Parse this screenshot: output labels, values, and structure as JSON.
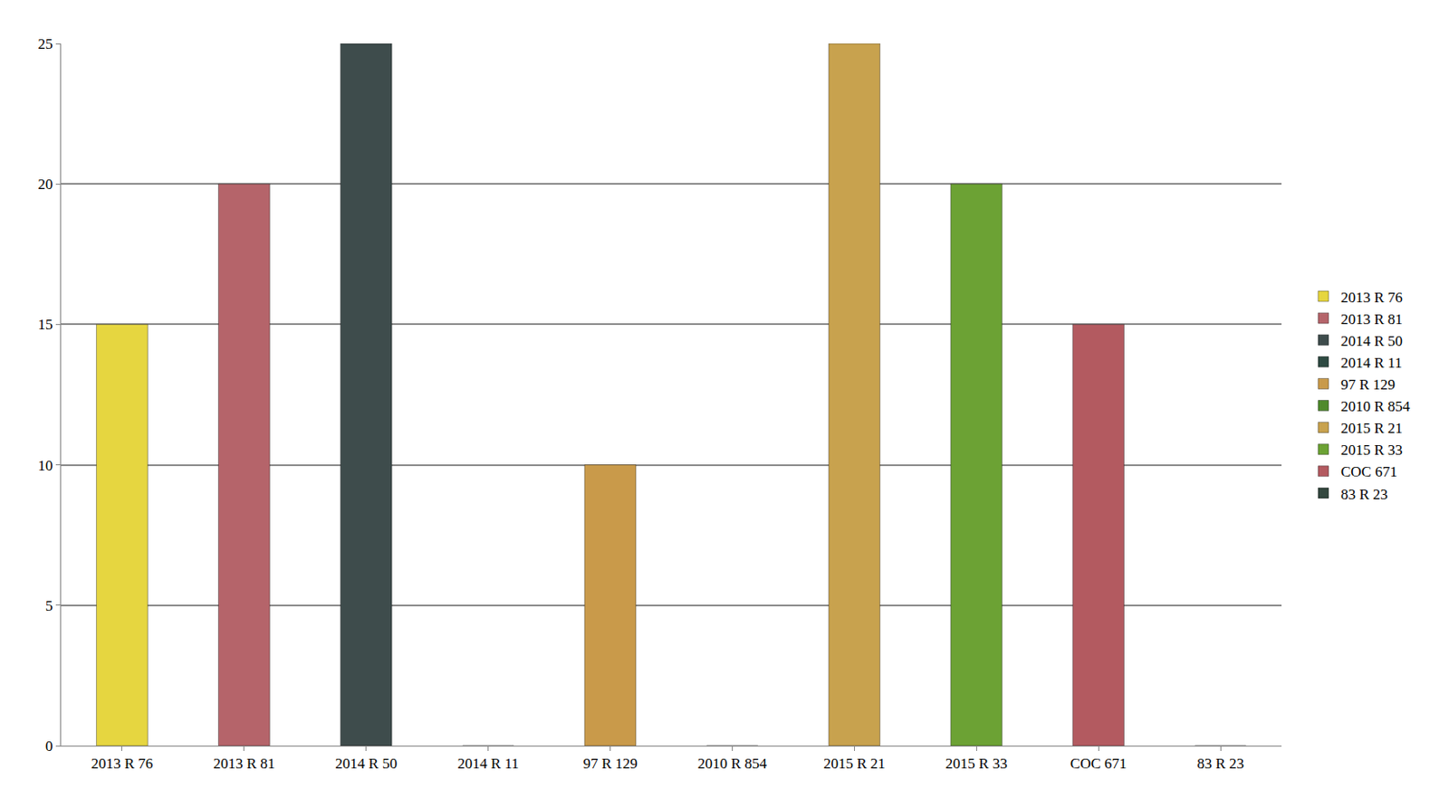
{
  "chart_data": {
    "type": "bar",
    "categories": [
      "2013 R 76",
      "2013 R 81",
      "2014 R 50",
      "2014 R 11",
      "97 R 129",
      "2010 R 854",
      "2015 R 21",
      "2015 R 33",
      "COC 671",
      "83 R 23"
    ],
    "values": [
      15,
      20,
      25,
      0,
      10,
      0,
      25,
      20,
      15,
      0
    ],
    "colors": [
      "#e6d640",
      "#b5646a",
      "#3e4c4c",
      "#2e4a42",
      "#c99a4a",
      "#4f8a2c",
      "#c8a24e",
      "#6ca234",
      "#b35a60",
      "#34483f"
    ],
    "ylim": [
      0,
      25
    ],
    "yticks": [
      0,
      5,
      10,
      15,
      20,
      25
    ],
    "grid": true,
    "legend": "right"
  }
}
